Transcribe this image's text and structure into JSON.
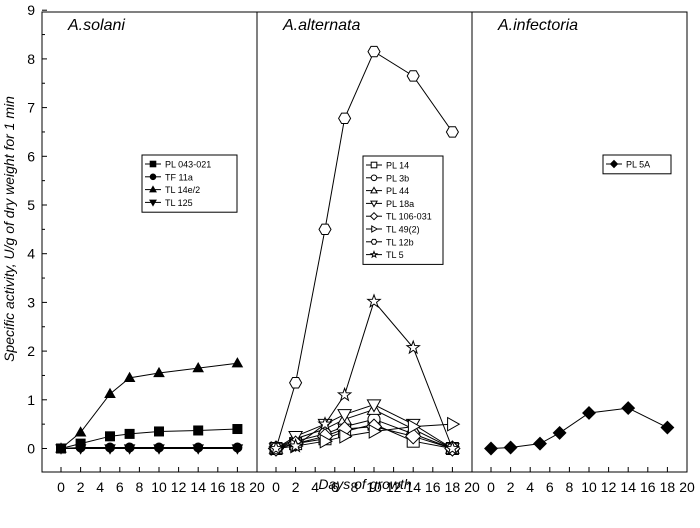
{
  "chart_data": {
    "type": "line",
    "xlabel": "Days of growth",
    "ylabel": "Specific activity, U/g of dry weight for 1 min",
    "ylim": [
      -0.5,
      9
    ],
    "yticks": [
      0,
      1,
      2,
      3,
      4,
      5,
      6,
      7,
      8,
      9
    ],
    "xlim": [
      -2,
      20
    ],
    "xticks": [
      0,
      2,
      4,
      6,
      8,
      10,
      12,
      14,
      16,
      18,
      20
    ],
    "legend_placement": "inside each panel, upper middle",
    "color": "#000000",
    "panels": [
      {
        "title": "A.solani",
        "series": [
          {
            "name": "PL 043-021",
            "marker": "square",
            "x": [
              0,
              2,
              5,
              7,
              10,
              14,
              18
            ],
            "y": [
              0.0,
              0.1,
              0.25,
              0.3,
              0.35,
              0.37,
              0.4
            ]
          },
          {
            "name": "TF 11a",
            "marker": "circle",
            "x": [
              0,
              2,
              5,
              7,
              10,
              14,
              18
            ],
            "y": [
              0.0,
              0.02,
              0.02,
              0.02,
              0.02,
              0.02,
              0.02
            ]
          },
          {
            "name": "TL 14e/2",
            "marker": "triangle-up",
            "x": [
              0,
              2,
              5,
              7,
              10,
              14,
              18
            ],
            "y": [
              0.0,
              0.33,
              1.12,
              1.45,
              1.55,
              1.65,
              1.75
            ]
          },
          {
            "name": "TL 125",
            "marker": "triangle-down",
            "x": [
              0,
              2,
              5,
              7,
              10,
              14,
              18
            ],
            "y": [
              0.0,
              0.0,
              0.0,
              0.0,
              0.0,
              0.0,
              0.0
            ]
          }
        ]
      },
      {
        "title": "A.alternata",
        "series": [
          {
            "name": "PL 14",
            "marker": "open-square",
            "x": [
              0,
              2,
              5,
              7,
              10,
              14,
              18
            ],
            "y": [
              0.0,
              0.1,
              0.2,
              0.35,
              0.5,
              0.15,
              0.0
            ]
          },
          {
            "name": "PL 3b",
            "marker": "open-circle",
            "x": [
              0,
              2,
              5,
              7,
              10,
              14,
              18
            ],
            "y": [
              0.0,
              0.15,
              0.3,
              0.45,
              0.6,
              0.3,
              0.0
            ]
          },
          {
            "name": "PL 44",
            "marker": "open-triangle-up",
            "x": [
              0,
              2,
              5,
              7,
              10,
              14,
              18
            ],
            "y": [
              0.0,
              0.2,
              0.4,
              0.6,
              0.8,
              0.4,
              0.0
            ]
          },
          {
            "name": "PL 18a",
            "marker": "open-triangle-down",
            "x": [
              0,
              2,
              5,
              7,
              10,
              14,
              18
            ],
            "y": [
              0.0,
              0.25,
              0.5,
              0.7,
              0.9,
              0.5,
              0.0
            ]
          },
          {
            "name": "TL 106-031",
            "marker": "open-diamond",
            "x": [
              0,
              2,
              5,
              7,
              10,
              14,
              18
            ],
            "y": [
              0.0,
              0.1,
              0.25,
              0.4,
              0.45,
              0.25,
              0.0
            ]
          },
          {
            "name": "TL 49(2)",
            "marker": "open-triangle-right",
            "x": [
              0,
              2,
              5,
              7,
              10,
              14,
              18
            ],
            "y": [
              0.0,
              0.05,
              0.15,
              0.25,
              0.35,
              0.45,
              0.5
            ]
          },
          {
            "name": "TL 12b",
            "marker": "open-hexagon",
            "x": [
              0,
              2,
              5,
              7,
              10,
              14,
              18
            ],
            "y": [
              0.0,
              1.35,
              4.5,
              6.78,
              8.15,
              7.65,
              6.5
            ]
          },
          {
            "name": "TL 5",
            "marker": "open-star",
            "x": [
              0,
              2,
              5,
              7,
              10,
              14,
              18
            ],
            "y": [
              0.0,
              0.05,
              0.5,
              1.1,
              3.02,
              2.07,
              0.0
            ]
          }
        ]
      },
      {
        "title": "A.infectoria",
        "series": [
          {
            "name": "PL 5A",
            "marker": "diamond",
            "x": [
              0,
              2,
              5,
              7,
              10,
              14,
              18
            ],
            "y": [
              0.0,
              0.02,
              0.1,
              0.32,
              0.73,
              0.83,
              0.43
            ]
          }
        ]
      }
    ]
  }
}
